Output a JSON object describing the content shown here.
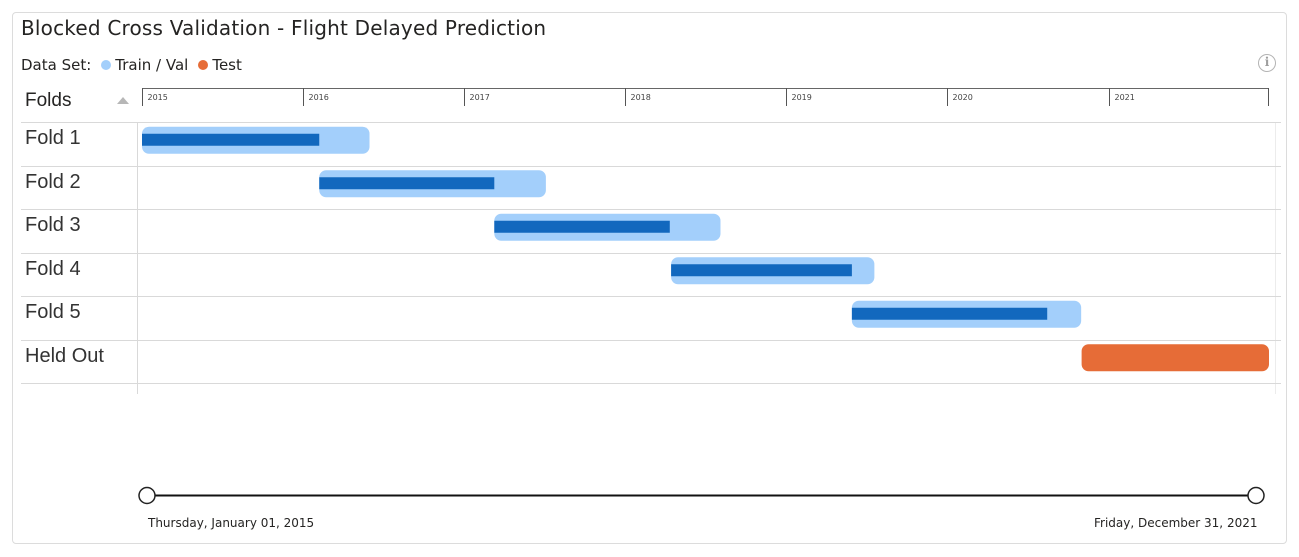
{
  "header": {
    "title": "Blocked Cross Validation - Flight Delayed Prediction",
    "legend_label": "Data Set:",
    "legend_items": [
      {
        "label": "Train / Val",
        "color": "#a3cffb"
      },
      {
        "label": "Test",
        "color": "#e66c37"
      }
    ]
  },
  "table": {
    "column_header": "Folds"
  },
  "colors": {
    "train_val": "#a3cffb",
    "train_inner": "#1268be",
    "test": "#e66c37",
    "grid": "#d9d9d9"
  },
  "chart_data": {
    "type": "gantt",
    "x_axis": {
      "range": [
        "2015-01-01",
        "2021-12-31"
      ],
      "ticks": [
        "2015",
        "2016",
        "2017",
        "2018",
        "2019",
        "2020",
        "2021"
      ]
    },
    "rows": [
      {
        "label": "Fold 1",
        "dataset": "Train / Val",
        "start": "2015-01-01",
        "end": "2016-05-31",
        "inner_start": "2015-01-01",
        "inner_end": "2016-02-07"
      },
      {
        "label": "Fold 2",
        "dataset": "Train / Val",
        "start": "2016-02-07",
        "end": "2017-07-05",
        "inner_start": "2016-02-07",
        "inner_end": "2017-03-10"
      },
      {
        "label": "Fold 3",
        "dataset": "Train / Val",
        "start": "2017-03-10",
        "end": "2018-08-05",
        "inner_start": "2017-03-10",
        "inner_end": "2018-04-12"
      },
      {
        "label": "Fold 4",
        "dataset": "Train / Val",
        "start": "2018-04-15",
        "end": "2019-07-20",
        "inner_start": "2018-04-15",
        "inner_end": "2019-05-30"
      },
      {
        "label": "Fold 5",
        "dataset": "Train / Val",
        "start": "2019-05-30",
        "end": "2020-10-31",
        "inner_start": "2019-05-30",
        "inner_end": "2020-08-15"
      },
      {
        "label": "Held Out",
        "dataset": "Test",
        "start": "2020-11-01",
        "end": "2021-12-31"
      }
    ]
  },
  "slider": {
    "start_label": "Thursday, January 01, 2015",
    "end_label": "Friday, December 31, 2021"
  }
}
